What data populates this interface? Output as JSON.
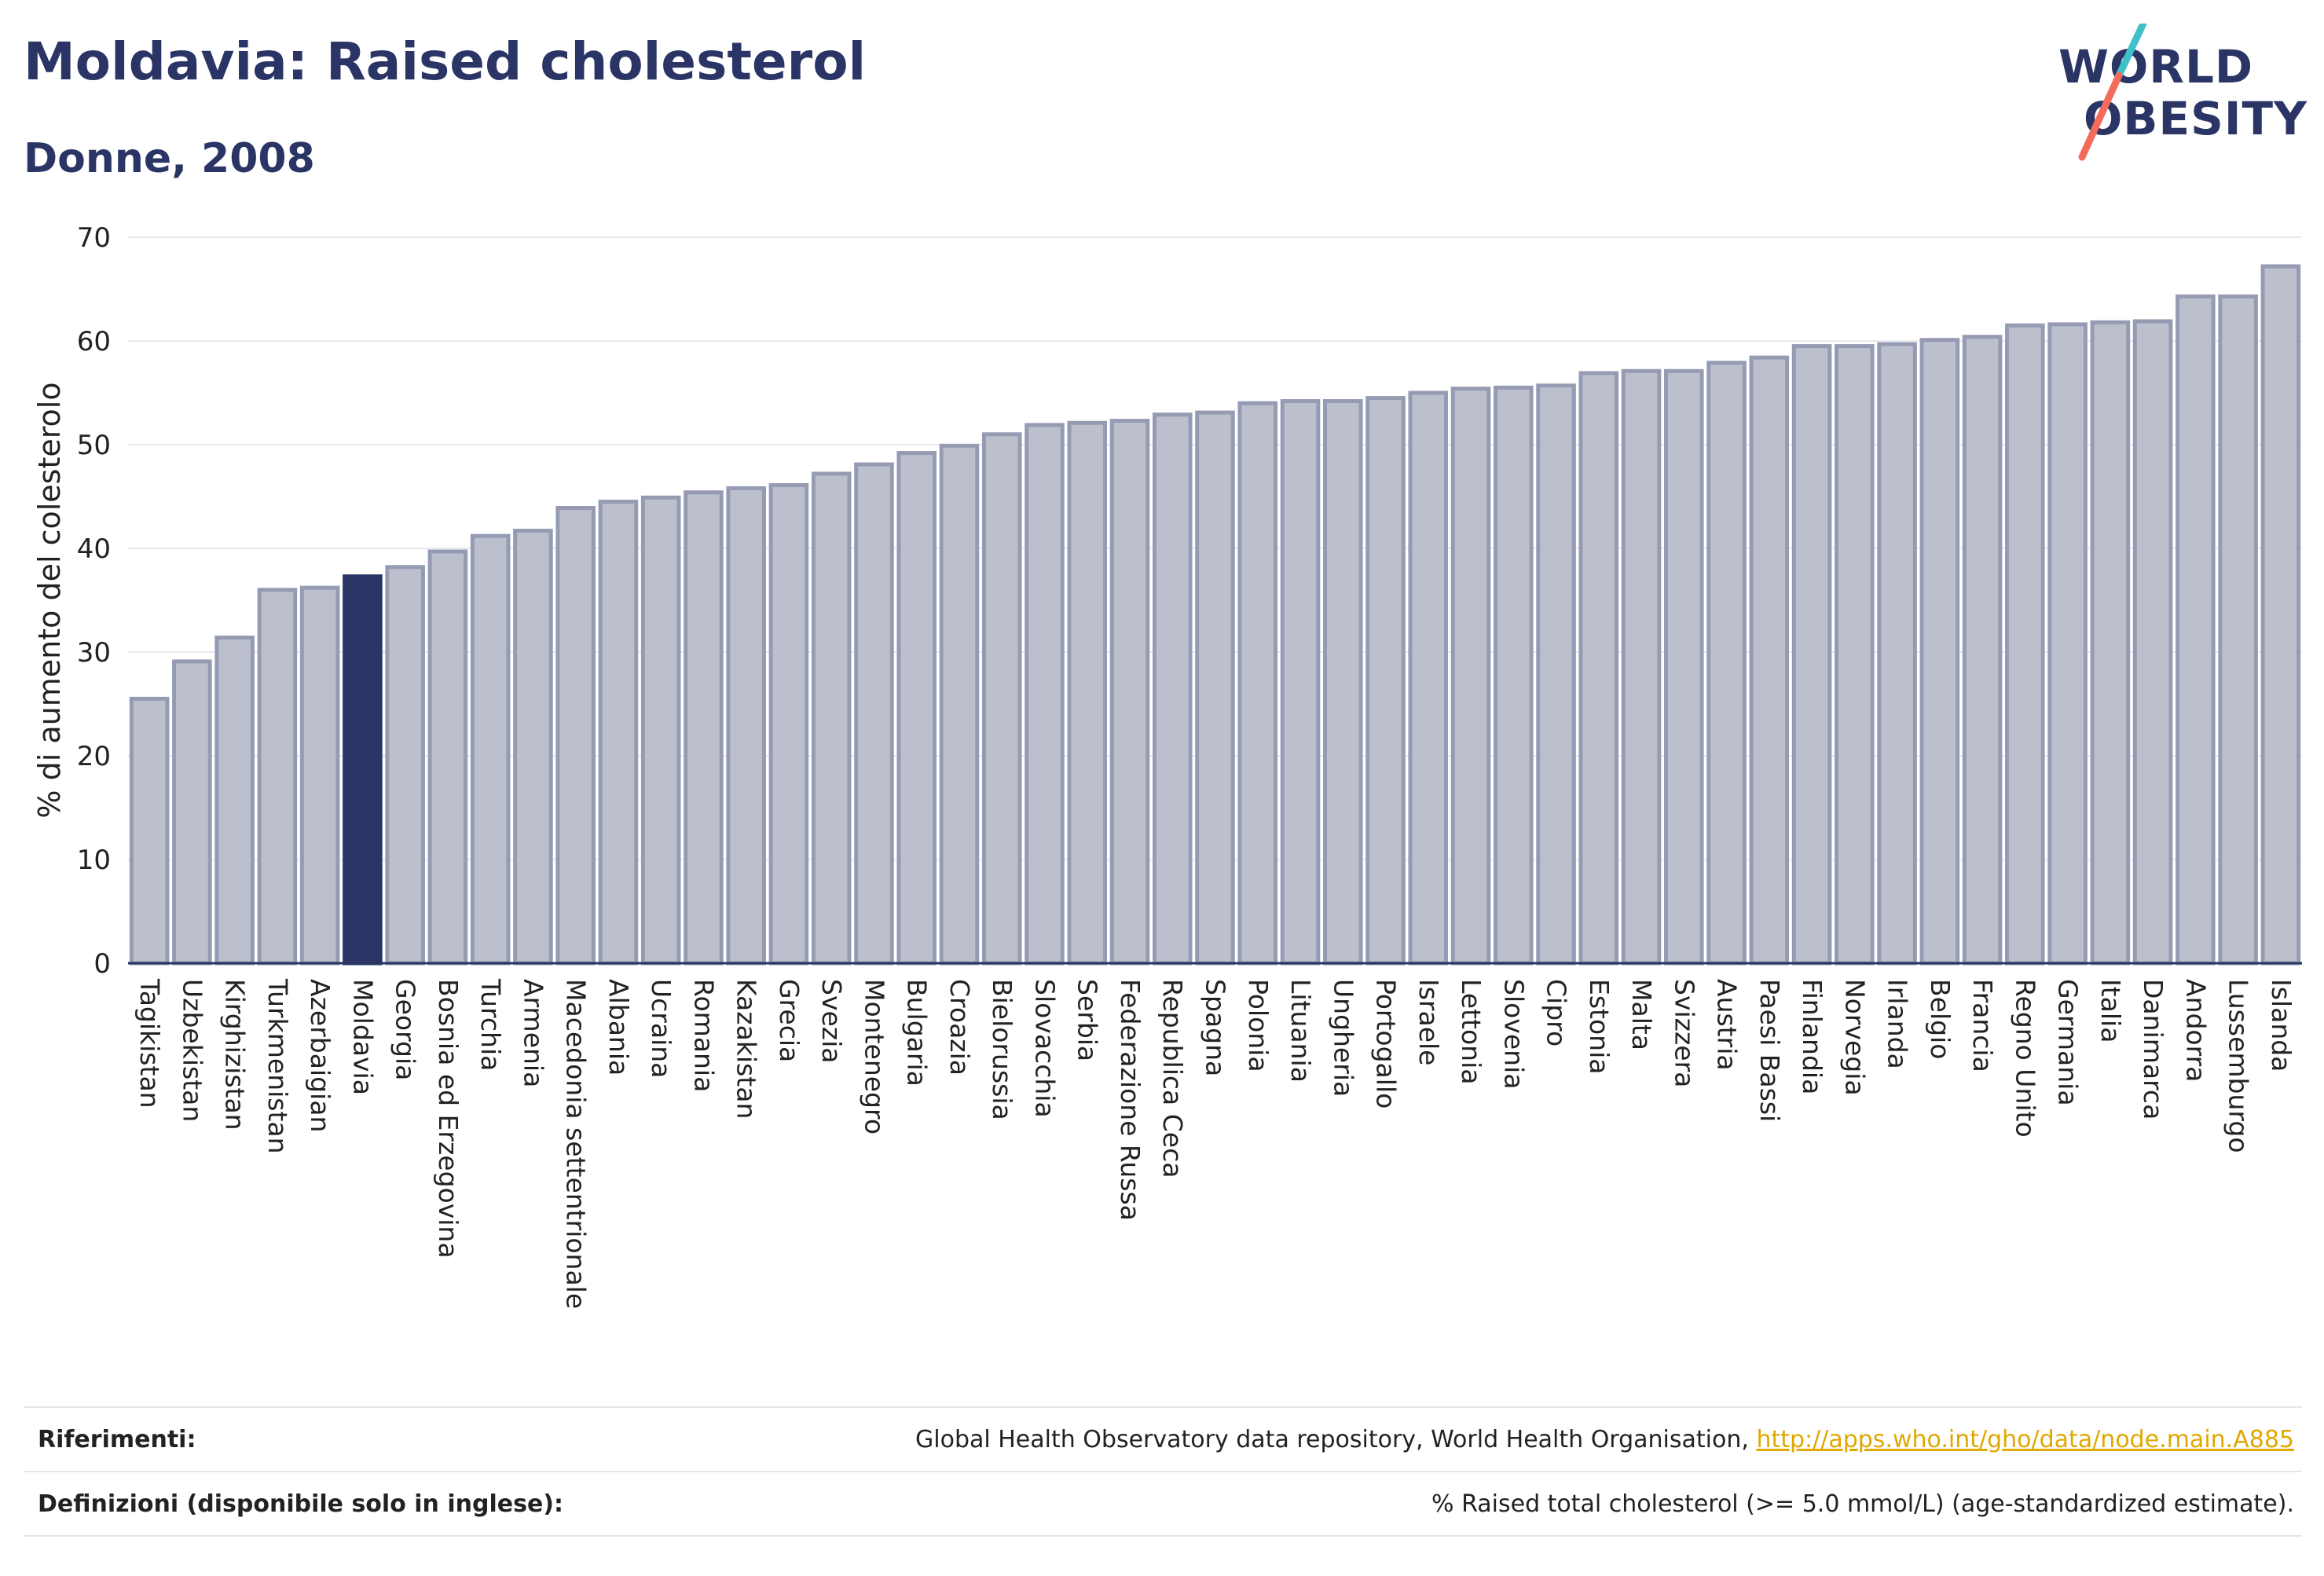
{
  "header": {
    "title": "Moldavia: Raised cholesterol",
    "subtitle": "Donne, 2008"
  },
  "logo": {
    "line1": "WORLD",
    "line2": "OBESITY",
    "slash_colors": [
      "#3fc1c9",
      "#f26b5b"
    ]
  },
  "footer": {
    "references_label": "Riferimenti:",
    "references_text": "Global Health Observatory data repository, World Health Organisation, ",
    "references_link": "http://apps.who.int/gho/data/node.main.A885",
    "definitions_label": "Definizioni (disponibile solo in inglese):",
    "definitions_text": "% Raised total cholesterol (>= 5.0 mmol/L) (age-standardized estimate)."
  },
  "colors": {
    "bar": "#bcc0cd",
    "bar_border": "#959bb3",
    "highlight": "#2a3565",
    "title": "#2a3565",
    "grid": "#e8e8ee"
  },
  "chart_data": {
    "type": "bar",
    "ylabel": "% di aumento del colesterolo",
    "xlabel": "",
    "ylim": [
      0,
      70
    ],
    "yticks": [
      0,
      10,
      20,
      30,
      40,
      50,
      60,
      70
    ],
    "grid": true,
    "highlight": "Moldavia",
    "categories": [
      "Tagikistan",
      "Uzbekistan",
      "Kirghizistan",
      "Turkmenistan",
      "Azerbaigian",
      "Moldavia",
      "Georgia",
      "Bosnia ed Erzegovina",
      "Turchia",
      "Armenia",
      "Macedonia settentrionale",
      "Albania",
      "Ucraina",
      "Romania",
      "Kazakistan",
      "Grecia",
      "Svezia",
      "Montenegro",
      "Bulgaria",
      "Croazia",
      "Bielorussia",
      "Slovacchia",
      "Serbia",
      "Federazione Russa",
      "Republica Ceca",
      "Spagna",
      "Polonia",
      "Lituania",
      "Ungheria",
      "Portogallo",
      "Israele",
      "Lettonia",
      "Slovenia",
      "Cipro",
      "Estonia",
      "Malta",
      "Svizzera",
      "Austria",
      "Paesi Bassi",
      "Finlandia",
      "Norvegia",
      "Irlanda",
      "Belgio",
      "Francia",
      "Regno Unito",
      "Germania",
      "Italia",
      "Danimarca",
      "Andorra",
      "Lussemburgo",
      "Islanda"
    ],
    "values": [
      25.5,
      29.1,
      31.4,
      36.0,
      36.2,
      37.3,
      38.2,
      39.7,
      41.2,
      41.7,
      43.9,
      44.5,
      44.9,
      45.4,
      45.8,
      46.1,
      47.2,
      48.1,
      49.2,
      49.9,
      51.0,
      51.9,
      52.1,
      52.3,
      52.9,
      53.1,
      54.0,
      54.2,
      54.2,
      54.5,
      55.0,
      55.4,
      55.5,
      55.7,
      56.9,
      57.1,
      57.1,
      57.9,
      58.4,
      59.5,
      59.5,
      59.7,
      60.1,
      60.4,
      61.5,
      61.6,
      61.8,
      61.9,
      64.3,
      64.3,
      67.2
    ]
  }
}
